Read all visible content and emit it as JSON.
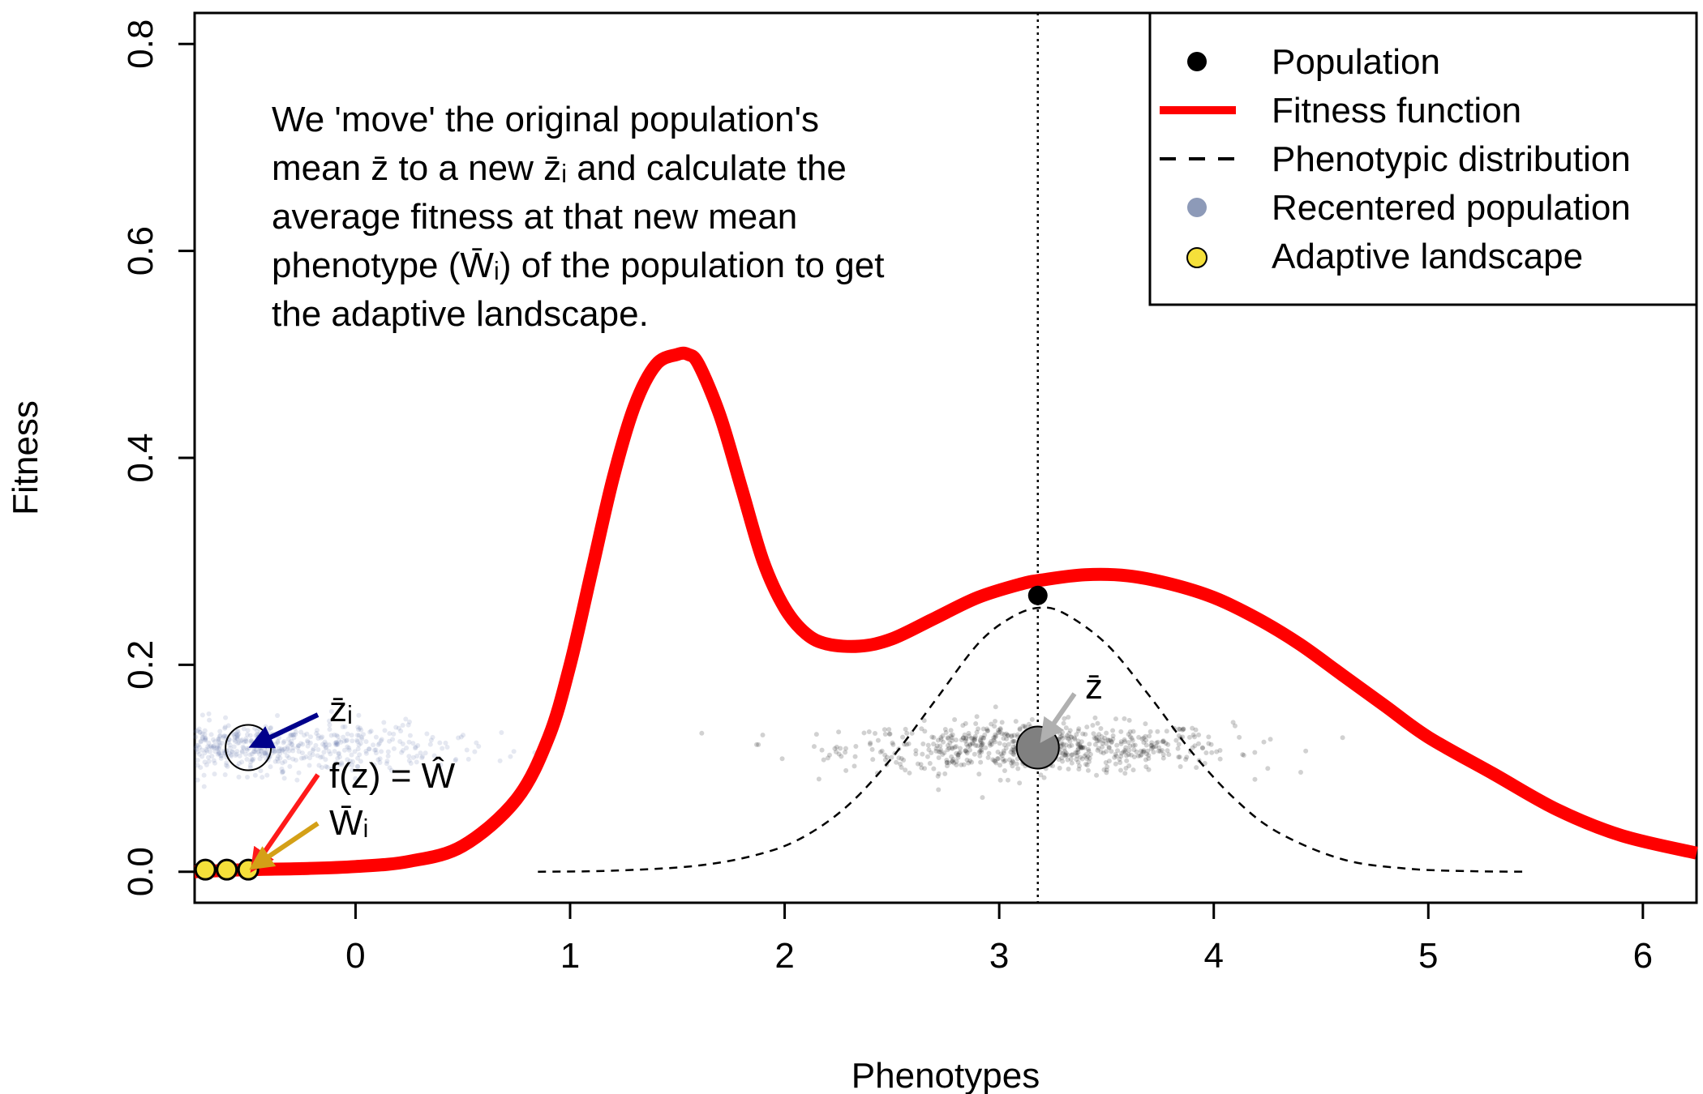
{
  "chart_data": {
    "type": "line",
    "xlabel": "Phenotypes",
    "ylabel": "Fitness",
    "xlim": [
      -0.75,
      6.25
    ],
    "ylim": [
      -0.03,
      0.83
    ],
    "xticks": [
      0,
      1,
      2,
      3,
      4,
      5,
      6
    ],
    "yticks": [
      0.0,
      0.2,
      0.4,
      0.6,
      0.8
    ],
    "xtick_labels": [
      "0",
      "1",
      "2",
      "3",
      "4",
      "5",
      "6"
    ],
    "ytick_labels": [
      "0.0",
      "0.2",
      "0.4",
      "0.6",
      "0.8"
    ],
    "grid": false,
    "legend_position": "top-right",
    "legend": [
      {
        "label": "Population",
        "marker": "filled-circle",
        "color": "#000000"
      },
      {
        "label": "Fitness function",
        "marker": "solid-line",
        "color": "#ff0000"
      },
      {
        "label": "Phenotypic distribution",
        "marker": "dashed-line",
        "color": "#000000"
      },
      {
        "label": "Recentered population",
        "marker": "filled-circle",
        "color": "#8d9ab8"
      },
      {
        "label": "Adaptive landscape",
        "marker": "filled-circle",
        "color": "#f5e03a"
      }
    ],
    "annotation": {
      "lines": [
        "We 'move' the original population's",
        "mean z̄ to a new z̄ᵢ and calculate the",
        "average fitness at that new mean",
        "phenotype (W̄ᵢ) of the population to get",
        "the adaptive landscape."
      ]
    },
    "series": [
      {
        "name": "Fitness function",
        "style": "solid",
        "color": "#ff0000",
        "x": [
          -0.75,
          -0.5,
          -0.25,
          0.0,
          0.25,
          0.5,
          0.75,
          0.9,
          1.0,
          1.1,
          1.2,
          1.3,
          1.4,
          1.5,
          1.55,
          1.6,
          1.7,
          1.8,
          1.9,
          2.0,
          2.1,
          2.2,
          2.35,
          2.5,
          2.7,
          2.9,
          3.1,
          3.2,
          3.4,
          3.6,
          3.8,
          4.0,
          4.2,
          4.4,
          4.6,
          4.8,
          5.0,
          5.3,
          5.6,
          5.9,
          6.25
        ],
        "y": [
          0.0,
          0.002,
          0.003,
          0.005,
          0.01,
          0.025,
          0.07,
          0.13,
          0.2,
          0.29,
          0.38,
          0.45,
          0.49,
          0.5,
          0.5,
          0.49,
          0.44,
          0.37,
          0.3,
          0.255,
          0.23,
          0.22,
          0.218,
          0.225,
          0.245,
          0.265,
          0.278,
          0.282,
          0.287,
          0.286,
          0.278,
          0.265,
          0.245,
          0.22,
          0.19,
          0.16,
          0.13,
          0.095,
          0.06,
          0.035,
          0.018
        ]
      },
      {
        "name": "Phenotypic distribution",
        "style": "dashed",
        "color": "#000000",
        "x": [
          0.85,
          1.2,
          1.6,
          1.9,
          2.1,
          2.3,
          2.5,
          2.7,
          2.9,
          3.05,
          3.18,
          3.3,
          3.5,
          3.7,
          3.9,
          4.1,
          4.3,
          4.6,
          4.9,
          5.2,
          5.45
        ],
        "y": [
          0.0,
          0.001,
          0.006,
          0.018,
          0.035,
          0.065,
          0.11,
          0.165,
          0.22,
          0.245,
          0.255,
          0.25,
          0.22,
          0.17,
          0.115,
          0.07,
          0.038,
          0.012,
          0.003,
          0.0005,
          0.0
        ]
      },
      {
        "name": "Population",
        "type": "scatter",
        "color": "#000000",
        "x": [
          3.18
        ],
        "y": [
          0.267
        ]
      },
      {
        "name": "Adaptive landscape",
        "type": "scatter",
        "color": "#f5e03a",
        "x": [
          -0.7,
          -0.6,
          -0.5
        ],
        "y": [
          0.002,
          0.002,
          0.002
        ]
      }
    ],
    "population_mean": {
      "x": 3.18,
      "y": 0.12,
      "label": "z̄"
    },
    "recentered_mean": {
      "x": -0.5,
      "y": 0.12,
      "label": "z̄ᵢ"
    },
    "vertical_reference_line_x": 3.18,
    "clouds": [
      {
        "name": "Population cloud",
        "center_x": 3.18,
        "center_y": 0.12,
        "sd_x": 0.45,
        "sd_y": 0.012,
        "n": 700,
        "color": "#000000"
      },
      {
        "name": "Recentered population cloud",
        "center_x": -0.5,
        "center_y": 0.12,
        "sd_x": 0.45,
        "sd_y": 0.012,
        "n": 700,
        "color": "#6f82b0"
      }
    ],
    "labels": {
      "zbar": "z̄",
      "zbar_i": "z̄ᵢ",
      "fz_eq_w": "f(z) = Ŵ",
      "wbar_i": "W̄ᵢ"
    }
  },
  "colors": {
    "fitness": "#ff0000",
    "navy_arrow": "#00008b",
    "red_arrow": "#ff1a1a",
    "gold_arrow": "#d4a017",
    "gray_arrow": "#b0b0b0"
  }
}
